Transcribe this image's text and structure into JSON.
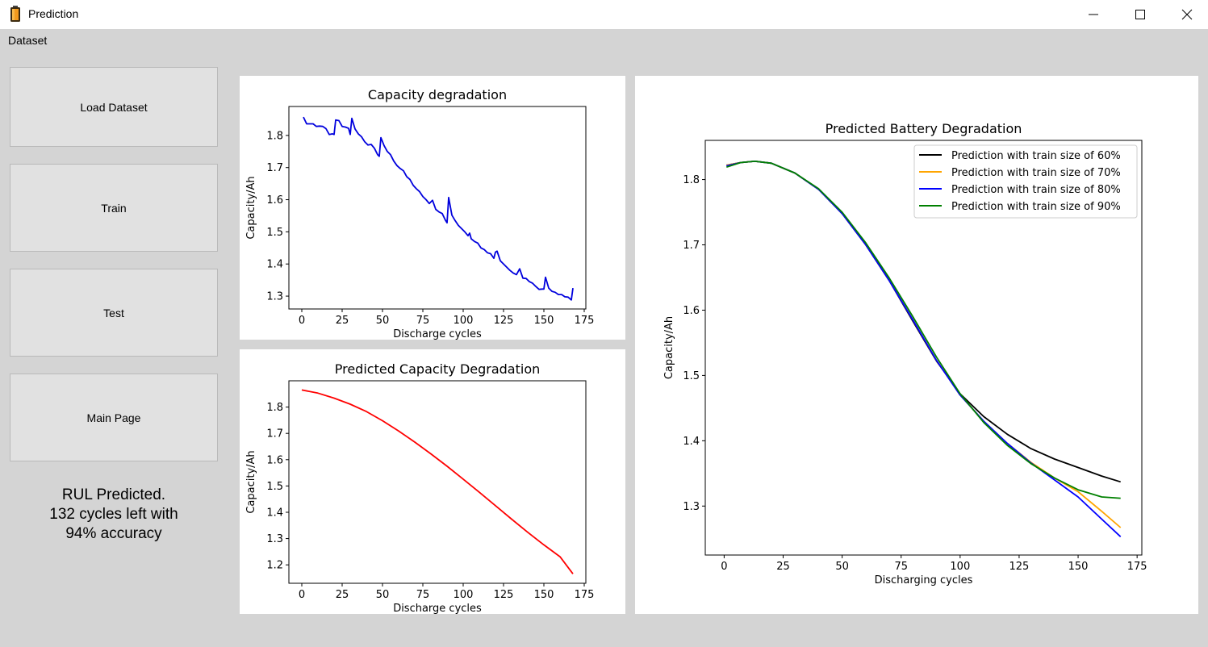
{
  "window": {
    "title": "Prediction",
    "icon": "battery-icon"
  },
  "menu": {
    "dataset": "Dataset"
  },
  "buttons": {
    "load": "Load Dataset",
    "train": "Train",
    "test": "Test",
    "main": "Main Page"
  },
  "status": {
    "line1": "RUL Predicted.",
    "line2": "132 cycles left with",
    "line3": "94% accuracy"
  },
  "chart_data": [
    {
      "type": "line",
      "title": "Capacity degradation",
      "xlabel": "Discharge cycles",
      "ylabel": "Capacity/Ah",
      "xlim": [
        -8,
        176
      ],
      "ylim": [
        1.26,
        1.89
      ],
      "xticks": [
        0,
        25,
        50,
        75,
        100,
        125,
        150,
        175
      ],
      "yticks": [
        1.3,
        1.4,
        1.5,
        1.6,
        1.7,
        1.8
      ],
      "grid": false,
      "series": [
        {
          "color": "#0000dd",
          "x": [
            1,
            3,
            5,
            7,
            9,
            11,
            13,
            15,
            17,
            19,
            20,
            21,
            23,
            25,
            27,
            29,
            30,
            31,
            33,
            35,
            37,
            39,
            41,
            43,
            45,
            47,
            48,
            49,
            51,
            53,
            55,
            57,
            59,
            61,
            63,
            65,
            67,
            69,
            71,
            73,
            75,
            77,
            79,
            81,
            83,
            85,
            87,
            89,
            90,
            91,
            93,
            95,
            97,
            99,
            101,
            103,
            104,
            105,
            107,
            109,
            111,
            113,
            115,
            117,
            119,
            120,
            121,
            123,
            125,
            127,
            129,
            131,
            133,
            135,
            137,
            139,
            141,
            143,
            145,
            147,
            149,
            150,
            151,
            153,
            155,
            157,
            159,
            161,
            163,
            165,
            167,
            168
          ],
          "y": [
            1.857,
            1.836,
            1.836,
            1.836,
            1.828,
            1.829,
            1.828,
            1.821,
            1.803,
            1.805,
            1.803,
            1.848,
            1.846,
            1.828,
            1.826,
            1.822,
            1.803,
            1.853,
            1.82,
            1.805,
            1.796,
            1.78,
            1.77,
            1.772,
            1.76,
            1.74,
            1.735,
            1.793,
            1.768,
            1.75,
            1.74,
            1.72,
            1.706,
            1.697,
            1.69,
            1.672,
            1.663,
            1.645,
            1.634,
            1.625,
            1.61,
            1.6,
            1.588,
            1.598,
            1.57,
            1.562,
            1.557,
            1.536,
            1.528,
            1.607,
            1.552,
            1.535,
            1.52,
            1.51,
            1.5,
            1.488,
            1.496,
            1.478,
            1.47,
            1.465,
            1.45,
            1.445,
            1.435,
            1.432,
            1.418,
            1.437,
            1.44,
            1.41,
            1.4,
            1.39,
            1.38,
            1.372,
            1.367,
            1.385,
            1.356,
            1.355,
            1.345,
            1.34,
            1.33,
            1.321,
            1.322,
            1.322,
            1.359,
            1.325,
            1.315,
            1.312,
            1.305,
            1.305,
            1.298,
            1.297,
            1.288,
            1.325
          ]
        }
      ]
    },
    {
      "type": "line",
      "title": "Predicted Capacity Degradation",
      "xlabel": "Discharge cycles",
      "ylabel": "Capacity/Ah",
      "xlim": [
        -8,
        176
      ],
      "ylim": [
        1.13,
        1.9
      ],
      "xticks": [
        0,
        25,
        50,
        75,
        100,
        125,
        150,
        175
      ],
      "yticks": [
        1.2,
        1.3,
        1.4,
        1.5,
        1.6,
        1.7,
        1.8
      ],
      "grid": false,
      "series": [
        {
          "color": "#ff0000",
          "x": [
            0,
            10,
            20,
            30,
            40,
            50,
            60,
            70,
            80,
            90,
            100,
            110,
            120,
            130,
            140,
            150,
            160,
            168
          ],
          "y": [
            1.865,
            1.853,
            1.834,
            1.811,
            1.783,
            1.748,
            1.709,
            1.667,
            1.622,
            1.575,
            1.526,
            1.476,
            1.425,
            1.374,
            1.324,
            1.276,
            1.231,
            1.166
          ]
        }
      ]
    },
    {
      "type": "line",
      "title": "Predicted Battery Degradation",
      "xlabel": "Discharging cycles",
      "ylabel": "Capacity/Ah",
      "xlim": [
        -8,
        177
      ],
      "ylim": [
        1.225,
        1.86
      ],
      "xticks": [
        0,
        25,
        50,
        75,
        100,
        125,
        150,
        175
      ],
      "yticks": [
        1.3,
        1.4,
        1.5,
        1.6,
        1.7,
        1.8
      ],
      "grid": false,
      "legend": "top-right",
      "series": [
        {
          "name": "Prediction with train size of 60%",
          "color": "#000000",
          "x": [
            1,
            7,
            13,
            20,
            30,
            40,
            50,
            60,
            70,
            80,
            90,
            100,
            110,
            120,
            130,
            140,
            150,
            160,
            168
          ],
          "y": [
            1.822,
            1.826,
            1.828,
            1.825,
            1.81,
            1.785,
            1.748,
            1.7,
            1.645,
            1.583,
            1.522,
            1.472,
            1.437,
            1.41,
            1.388,
            1.372,
            1.359,
            1.346,
            1.337
          ]
        },
        {
          "name": "Prediction with train size of 70%",
          "color": "#ffa500",
          "x": [
            1,
            7,
            13,
            20,
            30,
            40,
            50,
            60,
            70,
            80,
            90,
            100,
            110,
            120,
            130,
            140,
            150,
            160,
            168
          ],
          "y": [
            1.822,
            1.826,
            1.828,
            1.825,
            1.81,
            1.785,
            1.748,
            1.7,
            1.645,
            1.585,
            1.523,
            1.47,
            1.43,
            1.396,
            1.367,
            1.343,
            1.322,
            1.292,
            1.267
          ]
        },
        {
          "name": "Prediction with train size of 80%",
          "color": "#0000ff",
          "x": [
            1,
            7,
            13,
            20,
            30,
            40,
            50,
            60,
            70,
            80,
            90,
            100,
            110,
            120,
            130,
            140,
            150,
            160,
            168
          ],
          "y": [
            1.821,
            1.826,
            1.828,
            1.825,
            1.81,
            1.785,
            1.748,
            1.7,
            1.645,
            1.585,
            1.523,
            1.47,
            1.43,
            1.396,
            1.366,
            1.34,
            1.314,
            1.28,
            1.253
          ]
        },
        {
          "name": "Prediction with train size of 90%",
          "color": "#008000",
          "x": [
            1,
            7,
            13,
            20,
            30,
            40,
            50,
            60,
            70,
            80,
            90,
            100,
            110,
            120,
            130,
            140,
            150,
            160,
            168
          ],
          "y": [
            1.819,
            1.826,
            1.828,
            1.825,
            1.81,
            1.786,
            1.75,
            1.703,
            1.649,
            1.59,
            1.528,
            1.472,
            1.428,
            1.393,
            1.365,
            1.343,
            1.325,
            1.314,
            1.312
          ]
        }
      ]
    }
  ]
}
